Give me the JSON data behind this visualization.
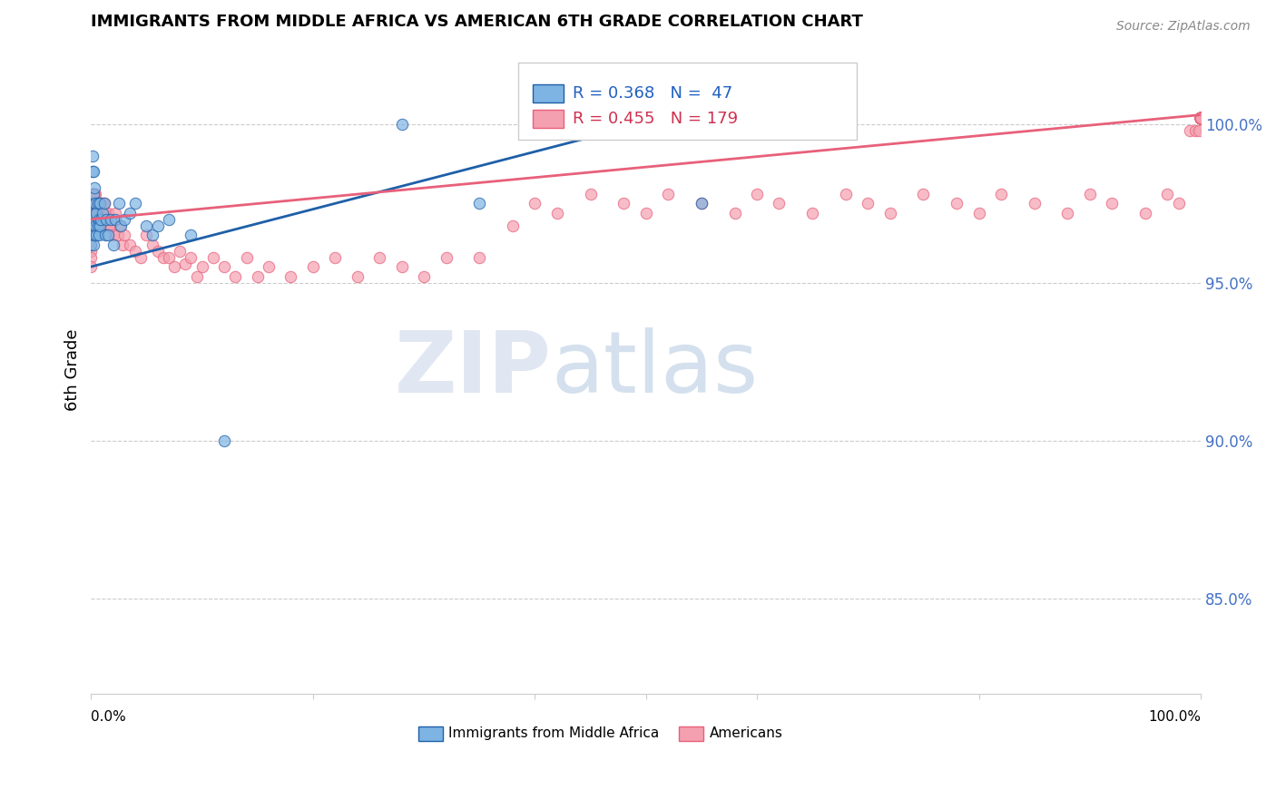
{
  "title": "IMMIGRANTS FROM MIDDLE AFRICA VS AMERICAN 6TH GRADE CORRELATION CHART",
  "source": "Source: ZipAtlas.com",
  "ylabel": "6th Grade",
  "ytick_labels": [
    "100.0%",
    "95.0%",
    "90.0%",
    "85.0%"
  ],
  "ytick_values": [
    1.0,
    0.95,
    0.9,
    0.85
  ],
  "xlim": [
    0.0,
    1.0
  ],
  "ylim": [
    0.82,
    1.025
  ],
  "blue_R": 0.368,
  "blue_N": 47,
  "pink_R": 0.455,
  "pink_N": 179,
  "blue_color": "#7EB4E3",
  "pink_color": "#F4A0B0",
  "blue_line_color": "#1E5FA8",
  "pink_line_color": "#E8607A",
  "legend_label_blue": "Immigrants from Middle Africa",
  "legend_label_pink": "Americans",
  "blue_line_x0": 0.0,
  "blue_line_y0": 0.955,
  "blue_line_x1": 0.55,
  "blue_line_y1": 1.005,
  "pink_line_x0": 0.0,
  "pink_line_y0": 0.97,
  "pink_line_x1": 1.0,
  "pink_line_y1": 1.003,
  "blue_points_x": [
    0.0,
    0.0,
    0.0,
    0.001,
    0.001,
    0.001,
    0.001,
    0.002,
    0.002,
    0.002,
    0.002,
    0.003,
    0.003,
    0.003,
    0.004,
    0.004,
    0.005,
    0.005,
    0.006,
    0.006,
    0.007,
    0.007,
    0.008,
    0.008,
    0.009,
    0.01,
    0.012,
    0.013,
    0.014,
    0.015,
    0.018,
    0.02,
    0.022,
    0.025,
    0.027,
    0.03,
    0.035,
    0.04,
    0.05,
    0.055,
    0.06,
    0.07,
    0.09,
    0.12,
    0.28,
    0.35,
    0.55
  ],
  "blue_points_y": [
    0.97,
    0.965,
    0.962,
    0.99,
    0.985,
    0.975,
    0.968,
    0.985,
    0.978,
    0.97,
    0.962,
    0.98,
    0.972,
    0.965,
    0.975,
    0.968,
    0.972,
    0.965,
    0.975,
    0.968,
    0.97,
    0.965,
    0.975,
    0.968,
    0.97,
    0.972,
    0.975,
    0.965,
    0.97,
    0.965,
    0.97,
    0.962,
    0.97,
    0.975,
    0.968,
    0.97,
    0.972,
    0.975,
    0.968,
    0.965,
    0.968,
    0.97,
    0.965,
    0.9,
    1.0,
    0.975,
    0.975
  ],
  "pink_points_x": [
    0.0,
    0.0,
    0.0,
    0.0,
    0.0,
    0.0,
    0.0,
    0.0,
    0.001,
    0.001,
    0.001,
    0.001,
    0.002,
    0.002,
    0.002,
    0.002,
    0.003,
    0.003,
    0.003,
    0.004,
    0.004,
    0.004,
    0.005,
    0.005,
    0.006,
    0.006,
    0.007,
    0.007,
    0.008,
    0.008,
    0.009,
    0.01,
    0.011,
    0.012,
    0.013,
    0.014,
    0.015,
    0.016,
    0.018,
    0.02,
    0.022,
    0.024,
    0.026,
    0.028,
    0.03,
    0.035,
    0.04,
    0.045,
    0.05,
    0.055,
    0.06,
    0.065,
    0.07,
    0.075,
    0.08,
    0.085,
    0.09,
    0.095,
    0.1,
    0.11,
    0.12,
    0.13,
    0.14,
    0.15,
    0.16,
    0.18,
    0.2,
    0.22,
    0.24,
    0.26,
    0.28,
    0.3,
    0.32,
    0.35,
    0.38,
    0.4,
    0.42,
    0.45,
    0.48,
    0.5,
    0.52,
    0.55,
    0.58,
    0.6,
    0.62,
    0.65,
    0.68,
    0.7,
    0.72,
    0.75,
    0.78,
    0.8,
    0.82,
    0.85,
    0.88,
    0.9,
    0.92,
    0.95,
    0.97,
    0.98,
    0.99,
    0.995,
    0.998,
    1.0,
    1.0,
    1.0,
    1.0,
    1.0,
    1.0,
    1.0,
    1.0,
    1.0,
    1.0,
    1.0,
    1.0,
    1.0,
    1.0,
    1.0,
    1.0,
    1.0,
    1.0,
    1.0,
    1.0,
    1.0,
    1.0,
    1.0,
    1.0,
    1.0,
    1.0,
    1.0,
    1.0,
    1.0,
    1.0,
    1.0,
    1.0,
    1.0,
    1.0,
    1.0,
    1.0,
    1.0,
    1.0,
    1.0,
    1.0,
    1.0,
    1.0,
    1.0,
    1.0,
    1.0,
    1.0,
    1.0,
    1.0,
    1.0,
    1.0,
    1.0,
    1.0,
    1.0,
    1.0,
    1.0,
    1.0,
    1.0,
    1.0,
    1.0,
    1.0,
    1.0,
    1.0,
    1.0,
    1.0,
    1.0,
    1.0,
    1.0
  ],
  "pink_points_y": [
    0.975,
    0.972,
    0.968,
    0.965,
    0.962,
    0.96,
    0.958,
    0.955,
    0.978,
    0.975,
    0.972,
    0.968,
    0.978,
    0.975,
    0.972,
    0.968,
    0.978,
    0.975,
    0.972,
    0.978,
    0.975,
    0.972,
    0.975,
    0.972,
    0.975,
    0.972,
    0.975,
    0.972,
    0.975,
    0.972,
    0.975,
    0.975,
    0.972,
    0.975,
    0.972,
    0.968,
    0.972,
    0.968,
    0.968,
    0.965,
    0.972,
    0.965,
    0.968,
    0.962,
    0.965,
    0.962,
    0.96,
    0.958,
    0.965,
    0.962,
    0.96,
    0.958,
    0.958,
    0.955,
    0.96,
    0.956,
    0.958,
    0.952,
    0.955,
    0.958,
    0.955,
    0.952,
    0.958,
    0.952,
    0.955,
    0.952,
    0.955,
    0.958,
    0.952,
    0.958,
    0.955,
    0.952,
    0.958,
    0.958,
    0.968,
    0.975,
    0.972,
    0.978,
    0.975,
    0.972,
    0.978,
    0.975,
    0.972,
    0.978,
    0.975,
    0.972,
    0.978,
    0.975,
    0.972,
    0.978,
    0.975,
    0.972,
    0.978,
    0.975,
    0.972,
    0.978,
    0.975,
    0.972,
    0.978,
    0.975,
    0.998,
    0.998,
    0.998,
    1.002,
    1.002,
    1.002,
    1.002,
    1.002,
    1.002,
    1.002,
    1.002,
    1.002,
    1.002,
    1.002,
    1.002,
    1.002,
    1.002,
    1.002,
    1.002,
    1.002,
    1.002,
    1.002,
    1.002,
    1.002,
    1.002,
    1.002,
    1.002,
    1.002,
    1.002,
    1.002,
    1.002,
    1.002,
    1.002,
    1.002,
    1.002,
    1.002,
    1.002,
    1.002,
    1.002,
    1.002,
    1.002,
    1.002,
    1.002,
    1.002,
    1.002,
    1.002,
    1.002,
    1.002,
    1.002,
    1.002,
    1.002,
    1.002,
    1.002,
    1.002,
    1.002,
    1.002,
    1.002,
    1.002,
    1.002,
    1.002,
    1.002,
    1.002,
    1.002,
    1.002,
    1.002,
    1.002,
    1.002,
    1.002,
    1.002,
    1.002
  ]
}
